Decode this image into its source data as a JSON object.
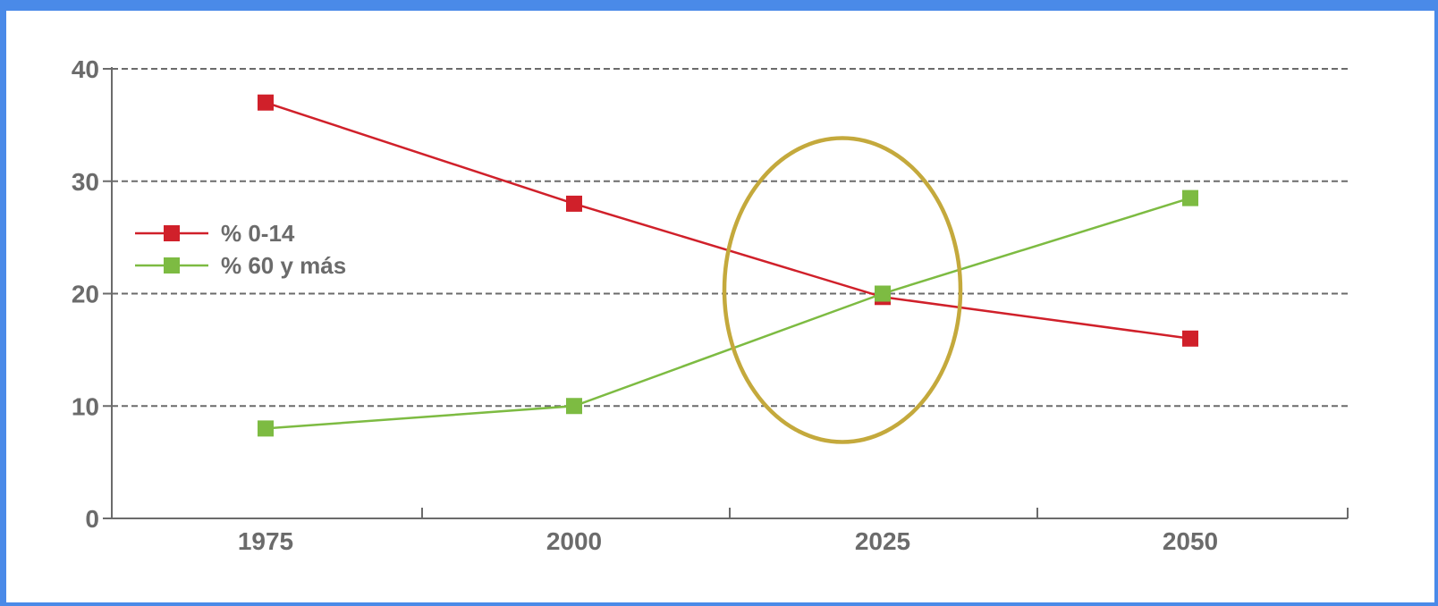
{
  "chart_data": {
    "type": "line",
    "title": "",
    "xlabel": "",
    "ylabel": "",
    "categories": [
      "1975",
      "2000",
      "2025",
      "2050"
    ],
    "y_ticks": [
      "0",
      "10",
      "20",
      "30",
      "40"
    ],
    "ylim": [
      0,
      40
    ],
    "grid": "horizontal dashed",
    "legend_position": "left",
    "series": [
      {
        "name": "% 0-14",
        "color": "#d0202a",
        "marker": "square",
        "values": [
          37,
          28,
          19.7,
          16
        ]
      },
      {
        "name": "% 60 y más",
        "color": "#7dbb42",
        "marker": "square",
        "values": [
          8,
          10,
          20,
          28.5
        ]
      }
    ],
    "annotation": {
      "type": "ellipse",
      "color": "#c4a93c",
      "around_category": "2025"
    }
  }
}
